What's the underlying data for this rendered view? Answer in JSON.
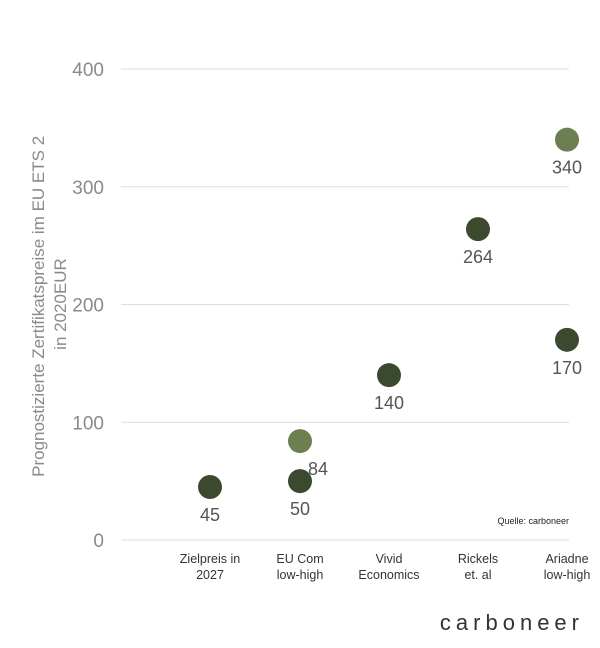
{
  "chart_data": {
    "type": "scatter",
    "title": "",
    "ylabel_lines": [
      "Prognostizierte Zertifikatspreise im EU ETS 2",
      "in 2020EUR"
    ],
    "xlabel": "",
    "ylim": [
      0,
      400
    ],
    "yticks": [
      0,
      100,
      200,
      300,
      400
    ],
    "grid": true,
    "categories": [
      [
        "Zielpreis in",
        "2027"
      ],
      [
        "EU Com",
        "low-high"
      ],
      [
        "Vivid",
        "Economics"
      ],
      [
        "Rickels",
        "et. al"
      ],
      [
        "Ariadne",
        "low-high"
      ]
    ],
    "points": [
      {
        "category": 0,
        "y": 45,
        "label": "45",
        "shade": "dark"
      },
      {
        "category": 1,
        "y": 50,
        "label": "50",
        "shade": "dark"
      },
      {
        "category": 1,
        "y": 84,
        "label": "84",
        "shade": "light"
      },
      {
        "category": 2,
        "y": 140,
        "label": "140",
        "shade": "dark"
      },
      {
        "category": 3,
        "y": 264,
        "label": "264",
        "shade": "dark"
      },
      {
        "category": 4,
        "y": 170,
        "label": "170",
        "shade": "dark"
      },
      {
        "category": 4,
        "y": 340,
        "label": "340",
        "shade": "light"
      }
    ],
    "colors": {
      "dark": "#3b4a2e",
      "light": "#6b7f51"
    }
  },
  "source_note": "Quelle: carboneer",
  "brand": "carboneer"
}
